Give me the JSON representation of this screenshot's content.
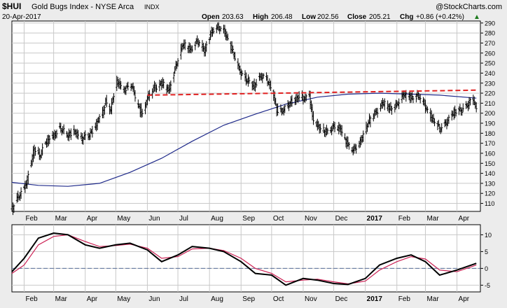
{
  "header": {
    "symbol": "$HUI",
    "name": "Gold Bugs Index - NYSE Arca",
    "exchange_tag": "INDX",
    "watermark": "@StockCharts.com",
    "date": "20-Apr-2017",
    "open_label": "Open",
    "open": "203.63",
    "high_label": "High",
    "high": "206.48",
    "low_label": "Low",
    "low": "202.56",
    "close_label": "Close",
    "close": "205.21",
    "chg_label": "Chg",
    "chg": "+0.86 (+0.42%)",
    "chg_arrow": "▲"
  },
  "colors": {
    "price_bars": "#000000",
    "moving_average": "#1f2a8a",
    "resistance_line": "#e02020",
    "oscillator_main": "#000000",
    "oscillator_signal": "#cc2255",
    "zero_line": "#5a6f9a",
    "grid": "#c8c8c8"
  },
  "chart_data": [
    {
      "type": "ohlc",
      "ylim": [
        102,
        292
      ],
      "yticks": [
        110,
        120,
        130,
        140,
        150,
        160,
        170,
        180,
        190,
        200,
        210,
        220,
        230,
        240,
        250,
        260,
        270,
        280,
        290
      ],
      "x_labels": [
        "Feb",
        "Mar",
        "Apr",
        "May",
        "Jun",
        "Jul",
        "Aug",
        "Sep",
        "Oct",
        "Nov",
        "Dec",
        "2017",
        "Feb",
        "Mar",
        "Apr"
      ],
      "bold_x_labels": [
        "2017"
      ],
      "grid": true,
      "close_path": [
        [
          "2016-01-20",
          104
        ],
        [
          "2016-01-27",
          118
        ],
        [
          "2016-02-03",
          130
        ],
        [
          "2016-02-08",
          150
        ],
        [
          "2016-02-11",
          165
        ],
        [
          "2016-02-16",
          158
        ],
        [
          "2016-02-22",
          170
        ],
        [
          "2016-03-01",
          178
        ],
        [
          "2016-03-07",
          186
        ],
        [
          "2016-03-14",
          177
        ],
        [
          "2016-03-21",
          183
        ],
        [
          "2016-03-28",
          174
        ],
        [
          "2016-04-04",
          178
        ],
        [
          "2016-04-11",
          187
        ],
        [
          "2016-04-18",
          200
        ],
        [
          "2016-04-21",
          212
        ],
        [
          "2016-04-26",
          204
        ],
        [
          "2016-05-02",
          231
        ],
        [
          "2016-05-09",
          224
        ],
        [
          "2016-05-16",
          228
        ],
        [
          "2016-05-23",
          208
        ],
        [
          "2016-05-27",
          199
        ],
        [
          "2016-06-01",
          214
        ],
        [
          "2016-06-08",
          226
        ],
        [
          "2016-06-15",
          230
        ],
        [
          "2016-06-22",
          222
        ],
        [
          "2016-06-29",
          248
        ],
        [
          "2016-07-06",
          268
        ],
        [
          "2016-07-13",
          264
        ],
        [
          "2016-07-20",
          272
        ],
        [
          "2016-07-27",
          262
        ],
        [
          "2016-08-03",
          282
        ],
        [
          "2016-08-10",
          285
        ],
        [
          "2016-08-16",
          282
        ],
        [
          "2016-08-23",
          263
        ],
        [
          "2016-08-30",
          244
        ],
        [
          "2016-09-06",
          234
        ],
        [
          "2016-09-13",
          226
        ],
        [
          "2016-09-20",
          238
        ],
        [
          "2016-09-26",
          234
        ],
        [
          "2016-10-03",
          218
        ],
        [
          "2016-10-06",
          204
        ],
        [
          "2016-10-13",
          202
        ],
        [
          "2016-10-20",
          212
        ],
        [
          "2016-10-27",
          216
        ],
        [
          "2016-11-03",
          214
        ],
        [
          "2016-11-07",
          220
        ],
        [
          "2016-11-10",
          196
        ],
        [
          "2016-11-17",
          184
        ],
        [
          "2016-11-24",
          182
        ],
        [
          "2016-12-01",
          186
        ],
        [
          "2016-12-08",
          184
        ],
        [
          "2016-12-15",
          168
        ],
        [
          "2016-12-20",
          162
        ],
        [
          "2016-12-27",
          172
        ],
        [
          "2017-01-04",
          190
        ],
        [
          "2017-01-11",
          201
        ],
        [
          "2017-01-18",
          210
        ],
        [
          "2017-01-25",
          204
        ],
        [
          "2017-02-01",
          209
        ],
        [
          "2017-02-08",
          218
        ],
        [
          "2017-02-15",
          216
        ],
        [
          "2017-02-22",
          217
        ],
        [
          "2017-03-01",
          207
        ],
        [
          "2017-03-08",
          194
        ],
        [
          "2017-03-15",
          184
        ],
        [
          "2017-03-22",
          192
        ],
        [
          "2017-03-29",
          200
        ],
        [
          "2017-04-05",
          204
        ],
        [
          "2017-04-11",
          208
        ],
        [
          "2017-04-17",
          213
        ],
        [
          "2017-04-20",
          205
        ]
      ],
      "moving_average": [
        [
          "2016-01-20",
          131
        ],
        [
          "2016-02-15",
          128
        ],
        [
          "2016-03-15",
          127
        ],
        [
          "2016-04-15",
          130
        ],
        [
          "2016-05-15",
          141
        ],
        [
          "2016-06-15",
          155
        ],
        [
          "2016-07-15",
          172
        ],
        [
          "2016-08-15",
          188
        ],
        [
          "2016-09-15",
          199
        ],
        [
          "2016-10-15",
          209
        ],
        [
          "2016-11-15",
          216
        ],
        [
          "2016-12-15",
          219
        ],
        [
          "2017-01-15",
          220
        ],
        [
          "2017-02-15",
          219
        ],
        [
          "2017-03-15",
          218
        ],
        [
          "2017-04-20",
          215
        ]
      ],
      "resistance_line": [
        [
          "2016-06-01",
          218
        ],
        [
          "2017-04-20",
          223
        ]
      ]
    },
    {
      "type": "line",
      "ylim": [
        -7,
        13
      ],
      "yticks": [
        -5,
        0,
        5,
        10
      ],
      "zero_line": 0,
      "x_labels": [
        "Feb",
        "Mar",
        "Apr",
        "May",
        "Jun",
        "Jul",
        "Aug",
        "Sep",
        "Oct",
        "Nov",
        "Dec",
        "2017",
        "Feb",
        "Mar",
        "Apr"
      ],
      "series": [
        {
          "color": "#000000",
          "points": [
            [
              "2016-01-20",
              -1
            ],
            [
              "2016-02-01",
              3
            ],
            [
              "2016-02-15",
              9
            ],
            [
              "2016-03-01",
              10.5
            ],
            [
              "2016-03-15",
              10
            ],
            [
              "2016-04-01",
              7
            ],
            [
              "2016-04-15",
              6
            ],
            [
              "2016-05-01",
              7
            ],
            [
              "2016-05-15",
              7.5
            ],
            [
              "2016-06-01",
              5.5
            ],
            [
              "2016-06-15",
              2
            ],
            [
              "2016-07-01",
              4
            ],
            [
              "2016-07-15",
              6.5
            ],
            [
              "2016-08-01",
              6
            ],
            [
              "2016-08-15",
              5
            ],
            [
              "2016-09-01",
              2
            ],
            [
              "2016-09-15",
              -1.5
            ],
            [
              "2016-10-01",
              -2
            ],
            [
              "2016-10-15",
              -5
            ],
            [
              "2016-11-01",
              -3
            ],
            [
              "2016-11-15",
              -3.5
            ],
            [
              "2016-12-01",
              -4.5
            ],
            [
              "2016-12-15",
              -4.8
            ],
            [
              "2017-01-01",
              -3
            ],
            [
              "2017-01-15",
              1
            ],
            [
              "2017-02-01",
              3
            ],
            [
              "2017-02-15",
              4
            ],
            [
              "2017-03-01",
              2
            ],
            [
              "2017-03-15",
              -2
            ],
            [
              "2017-04-01",
              -0.5
            ],
            [
              "2017-04-20",
              1.5
            ]
          ]
        },
        {
          "color": "#cc2255",
          "points": [
            [
              "2016-01-20",
              -1.5
            ],
            [
              "2016-02-01",
              1
            ],
            [
              "2016-02-15",
              7
            ],
            [
              "2016-03-01",
              9.5
            ],
            [
              "2016-03-15",
              10
            ],
            [
              "2016-04-01",
              8
            ],
            [
              "2016-04-15",
              6.5
            ],
            [
              "2016-05-01",
              6.8
            ],
            [
              "2016-05-15",
              7.2
            ],
            [
              "2016-06-01",
              6
            ],
            [
              "2016-06-15",
              3
            ],
            [
              "2016-07-01",
              3.5
            ],
            [
              "2016-07-15",
              5.8
            ],
            [
              "2016-08-01",
              6
            ],
            [
              "2016-08-15",
              5.3
            ],
            [
              "2016-09-01",
              3
            ],
            [
              "2016-09-15",
              0
            ],
            [
              "2016-10-01",
              -1.5
            ],
            [
              "2016-10-15",
              -4
            ],
            [
              "2016-11-01",
              -3.5
            ],
            [
              "2016-11-15",
              -3.2
            ],
            [
              "2016-12-01",
              -4
            ],
            [
              "2016-12-15",
              -4.6
            ],
            [
              "2017-01-01",
              -3.8
            ],
            [
              "2017-01-15",
              -0.5
            ],
            [
              "2017-02-01",
              2
            ],
            [
              "2017-02-15",
              3.5
            ],
            [
              "2017-03-01",
              2.8
            ],
            [
              "2017-03-15",
              -0.5
            ],
            [
              "2017-04-01",
              -1
            ],
            [
              "2017-04-20",
              1
            ]
          ]
        }
      ]
    }
  ]
}
